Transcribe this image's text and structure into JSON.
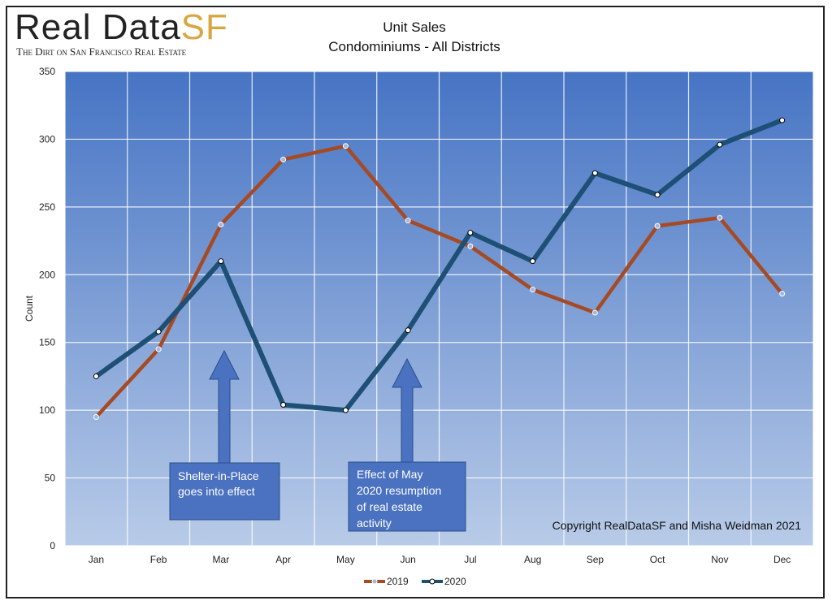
{
  "header": {
    "logo_word1": "Real Data",
    "logo_word2": "SF",
    "logo_tagline": "The Dirt on San Francisco Real Estate",
    "title_line1": "Unit Sales",
    "title_line2": "Condominiums  - All Districts"
  },
  "annotations": {
    "box1": [
      "Shelter-in-Place",
      "goes into effect"
    ],
    "box2": [
      "Effect of May",
      "2020 resumption",
      "of real estate",
      "activity"
    ],
    "copyright": "Copyright RealDataSF and Misha Weidman 2021"
  },
  "colors": {
    "series_2019": "#a64a24",
    "series_2020": "#1e4f74",
    "plot_top": "#4674c4",
    "plot_bottom": "#b8cbe8",
    "annotation": "#4a72c0",
    "logo_accent": "#d8a744"
  },
  "chart_data": {
    "type": "line",
    "title": "Unit Sales",
    "subtitle": "Condominiums  - All Districts",
    "xlabel": "",
    "ylabel": "Count",
    "categories": [
      "Jan",
      "Feb",
      "Mar",
      "Apr",
      "May",
      "Jun",
      "Jul",
      "Aug",
      "Sep",
      "Oct",
      "Nov",
      "Dec"
    ],
    "ylim": [
      0,
      350
    ],
    "yticks": [
      0,
      50,
      100,
      150,
      200,
      250,
      300,
      350
    ],
    "grid": true,
    "legend": "bottom",
    "series": [
      {
        "name": "2019",
        "values": [
          95,
          145,
          237,
          285,
          295,
          240,
          221,
          189,
          172,
          236,
          242,
          186
        ]
      },
      {
        "name": "2020",
        "values": [
          125,
          158,
          210,
          104,
          100,
          159,
          231,
          210,
          275,
          259,
          296,
          314
        ]
      }
    ]
  }
}
